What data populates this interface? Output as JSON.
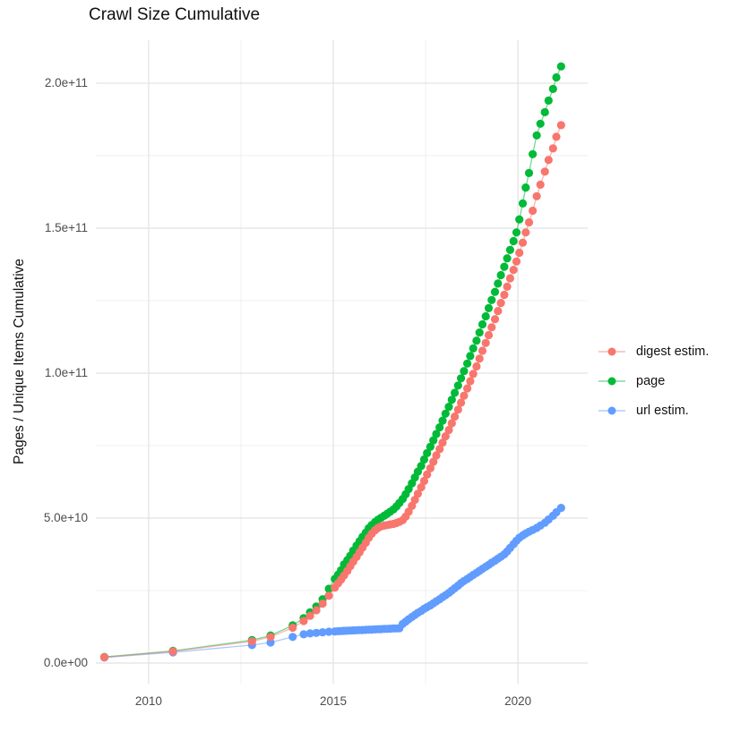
{
  "title": "Crawl Size Cumulative",
  "ylabel": "Pages / Unique Items Cumulative",
  "legend": {
    "items": [
      {
        "label": "digest estim.",
        "color": "#F8766D"
      },
      {
        "label": "page",
        "color": "#00BA38"
      },
      {
        "label": "url estim.",
        "color": "#619CFF"
      }
    ]
  },
  "colors": {
    "digest": "#F8766D",
    "page": "#00BA38",
    "url": "#619CFF",
    "grid_major": "#e2e2e2",
    "grid_minor": "#ececec",
    "axis_text": "#4d4d4d"
  },
  "chart_data": {
    "type": "scatter",
    "title": "Crawl Size Cumulative",
    "xlabel": "",
    "ylabel": "Pages / Unique Items Cumulative",
    "grid": true,
    "legend_position": "right",
    "xlim": [
      2008.57,
      2021.89
    ],
    "ylim": [
      -7100000000.0,
      214800000000.0
    ],
    "x_ticks": [
      {
        "value": 2010,
        "label": "2010"
      },
      {
        "value": 2015,
        "label": "2015"
      },
      {
        "value": 2020,
        "label": "2020"
      }
    ],
    "x_minor_ticks": [
      2012.5,
      2017.5
    ],
    "y_ticks": [
      {
        "value": 0,
        "label": "0.0e+00"
      },
      {
        "value": 50000000000.0,
        "label": "5.0e+10"
      },
      {
        "value": 100000000000.0,
        "label": "1.0e+11"
      },
      {
        "value": 150000000000.0,
        "label": "1.5e+11"
      },
      {
        "value": 200000000000.0,
        "label": "2.0e+11"
      }
    ],
    "y_minor_ticks": [
      25000000000.0,
      75000000000.0,
      125000000000.0,
      175000000000.0
    ],
    "series": [
      {
        "name": "url estim.",
        "color": "#619CFF",
        "points": [
          [
            2008.8,
            1900000000.0
          ],
          [
            2010.66,
            3700000000.0
          ],
          [
            2012.8,
            6200000000.0
          ],
          [
            2013.3,
            7100000000.0
          ],
          [
            2013.9,
            9000000000.0
          ],
          [
            2014.2,
            9900000000.0
          ],
          [
            2014.37,
            10200000000.0
          ],
          [
            2014.54,
            10400000000.0
          ],
          [
            2014.71,
            10600000000.0
          ],
          [
            2014.88,
            10800000000.0
          ],
          [
            2015.04,
            10900000000.0
          ],
          [
            2015.13,
            11000000000.0
          ],
          [
            2015.21,
            11050000000.0
          ],
          [
            2015.29,
            11100000000.0
          ],
          [
            2015.38,
            11150000000.0
          ],
          [
            2015.46,
            11200000000.0
          ],
          [
            2015.54,
            11250000000.0
          ],
          [
            2015.63,
            11300000000.0
          ],
          [
            2015.71,
            11350000000.0
          ],
          [
            2015.79,
            11400000000.0
          ],
          [
            2015.88,
            11450000000.0
          ],
          [
            2015.96,
            11500000000.0
          ],
          [
            2016.04,
            11550000000.0
          ],
          [
            2016.13,
            11600000000.0
          ],
          [
            2016.21,
            11650000000.0
          ],
          [
            2016.29,
            11700000000.0
          ],
          [
            2016.38,
            11750000000.0
          ],
          [
            2016.46,
            11800000000.0
          ],
          [
            2016.54,
            11850000000.0
          ],
          [
            2016.63,
            11900000000.0
          ],
          [
            2016.71,
            11950000000.0
          ],
          [
            2016.79,
            12000000000.0
          ],
          [
            2016.88,
            13500000000.0
          ],
          [
            2016.96,
            14300000000.0
          ],
          [
            2017.04,
            15100000000.0
          ],
          [
            2017.13,
            15900000000.0
          ],
          [
            2017.21,
            16600000000.0
          ],
          [
            2017.29,
            17300000000.0
          ],
          [
            2017.38,
            18000000000.0
          ],
          [
            2017.46,
            18700000000.0
          ],
          [
            2017.54,
            19300000000.0
          ],
          [
            2017.63,
            19900000000.0
          ],
          [
            2017.71,
            20600000000.0
          ],
          [
            2017.79,
            21300000000.0
          ],
          [
            2017.88,
            22000000000.0
          ],
          [
            2017.96,
            22700000000.0
          ],
          [
            2018.04,
            23400000000.0
          ],
          [
            2018.13,
            24200000000.0
          ],
          [
            2018.21,
            25000000000.0
          ],
          [
            2018.29,
            25800000000.0
          ],
          [
            2018.38,
            26700000000.0
          ],
          [
            2018.46,
            27600000000.0
          ],
          [
            2018.54,
            28300000000.0
          ],
          [
            2018.63,
            29000000000.0
          ],
          [
            2018.71,
            29700000000.0
          ],
          [
            2018.79,
            30400000000.0
          ],
          [
            2018.88,
            31100000000.0
          ],
          [
            2018.96,
            31800000000.0
          ],
          [
            2019.04,
            32500000000.0
          ],
          [
            2019.13,
            33200000000.0
          ],
          [
            2019.21,
            33900000000.0
          ],
          [
            2019.29,
            34600000000.0
          ],
          [
            2019.38,
            35300000000.0
          ],
          [
            2019.46,
            36000000000.0
          ],
          [
            2019.54,
            36700000000.0
          ],
          [
            2019.63,
            37500000000.0
          ],
          [
            2019.71,
            38500000000.0
          ],
          [
            2019.79,
            39700000000.0
          ],
          [
            2019.88,
            41000000000.0
          ],
          [
            2019.96,
            42200000000.0
          ],
          [
            2020.04,
            43200000000.0
          ],
          [
            2020.13,
            44000000000.0
          ],
          [
            2020.21,
            44700000000.0
          ],
          [
            2020.3,
            45300000000.0
          ],
          [
            2020.4,
            45900000000.0
          ],
          [
            2020.51,
            46600000000.0
          ],
          [
            2020.61,
            47400000000.0
          ],
          [
            2020.73,
            48400000000.0
          ],
          [
            2020.83,
            49500000000.0
          ],
          [
            2020.95,
            50800000000.0
          ],
          [
            2021.04,
            52000000000.0
          ],
          [
            2021.17,
            53500000000.0
          ]
        ]
      },
      {
        "name": "page",
        "color": "#00BA38",
        "points": [
          [
            2008.8,
            2100000000.0
          ],
          [
            2010.66,
            4200000000.0
          ],
          [
            2012.8,
            7900000000.0
          ],
          [
            2013.3,
            9500000000.0
          ],
          [
            2013.9,
            13000000000.0
          ],
          [
            2014.2,
            15500000000.0
          ],
          [
            2014.37,
            17500000000.0
          ],
          [
            2014.54,
            19500000000.0
          ],
          [
            2014.71,
            22000000000.0
          ],
          [
            2014.88,
            25600000000.0
          ],
          [
            2015.04,
            29000000000.0
          ],
          [
            2015.13,
            30500000000.0
          ],
          [
            2015.21,
            32000000000.0
          ],
          [
            2015.29,
            34000000000.0
          ],
          [
            2015.38,
            35500000000.0
          ],
          [
            2015.46,
            37000000000.0
          ],
          [
            2015.54,
            38800000000.0
          ],
          [
            2015.63,
            40500000000.0
          ],
          [
            2015.71,
            42000000000.0
          ],
          [
            2015.79,
            43500000000.0
          ],
          [
            2015.88,
            45000000000.0
          ],
          [
            2015.96,
            46500000000.0
          ],
          [
            2016.04,
            47600000000.0
          ],
          [
            2016.13,
            48600000000.0
          ],
          [
            2016.21,
            49400000000.0
          ],
          [
            2016.29,
            50100000000.0
          ],
          [
            2016.38,
            50800000000.0
          ],
          [
            2016.46,
            51500000000.0
          ],
          [
            2016.54,
            52200000000.0
          ],
          [
            2016.63,
            53000000000.0
          ],
          [
            2016.71,
            54000000000.0
          ],
          [
            2016.79,
            55200000000.0
          ],
          [
            2016.88,
            56600000000.0
          ],
          [
            2016.96,
            58200000000.0
          ],
          [
            2017.04,
            60000000000.0
          ],
          [
            2017.13,
            62000000000.0
          ],
          [
            2017.21,
            64000000000.0
          ],
          [
            2017.29,
            66000000000.0
          ],
          [
            2017.38,
            68000000000.0
          ],
          [
            2017.46,
            70200000000.0
          ],
          [
            2017.54,
            72400000000.0
          ],
          [
            2017.63,
            74600000000.0
          ],
          [
            2017.71,
            76800000000.0
          ],
          [
            2017.79,
            79000000000.0
          ],
          [
            2017.88,
            81300000000.0
          ],
          [
            2017.96,
            83600000000.0
          ],
          [
            2018.04,
            86000000000.0
          ],
          [
            2018.13,
            88400000000.0
          ],
          [
            2018.21,
            90800000000.0
          ],
          [
            2018.29,
            93200000000.0
          ],
          [
            2018.38,
            95700000000.0
          ],
          [
            2018.46,
            98200000000.0
          ],
          [
            2018.54,
            100700000000.0
          ],
          [
            2018.63,
            103300000000.0
          ],
          [
            2018.71,
            105900000000.0
          ],
          [
            2018.79,
            108500000000.0
          ],
          [
            2018.88,
            111200000000.0
          ],
          [
            2018.96,
            114000000000.0
          ],
          [
            2019.04,
            116800000000.0
          ],
          [
            2019.13,
            119600000000.0
          ],
          [
            2019.21,
            122400000000.0
          ],
          [
            2019.29,
            125200000000.0
          ],
          [
            2019.38,
            128000000000.0
          ],
          [
            2019.46,
            130900000000.0
          ],
          [
            2019.54,
            133800000000.0
          ],
          [
            2019.63,
            136700000000.0
          ],
          [
            2019.71,
            139600000000.0
          ],
          [
            2019.79,
            142500000000.0
          ],
          [
            2019.88,
            145500000000.0
          ],
          [
            2019.96,
            148500000000.0
          ],
          [
            2020.04,
            153000000000.0
          ],
          [
            2020.13,
            158500000000.0
          ],
          [
            2020.21,
            164000000000.0
          ],
          [
            2020.3,
            169000000000.0
          ],
          [
            2020.4,
            175500000000.0
          ],
          [
            2020.51,
            182000000000.0
          ],
          [
            2020.61,
            186000000000.0
          ],
          [
            2020.73,
            190000000000.0
          ],
          [
            2020.83,
            194000000000.0
          ],
          [
            2020.95,
            198000000000.0
          ],
          [
            2021.04,
            202000000000.0
          ],
          [
            2021.17,
            205800000000.0
          ]
        ]
      },
      {
        "name": "digest estim.",
        "color": "#F8766D",
        "points": [
          [
            2008.8,
            2000000000.0
          ],
          [
            2010.66,
            4000000000.0
          ],
          [
            2012.8,
            7500000000.0
          ],
          [
            2013.3,
            9000000000.0
          ],
          [
            2013.9,
            12200000000.0
          ],
          [
            2014.2,
            14500000000.0
          ],
          [
            2014.37,
            16300000000.0
          ],
          [
            2014.54,
            18200000000.0
          ],
          [
            2014.71,
            20500000000.0
          ],
          [
            2014.88,
            23200000000.0
          ],
          [
            2015.04,
            26000000000.0
          ],
          [
            2015.13,
            27500000000.0
          ],
          [
            2015.21,
            28800000000.0
          ],
          [
            2015.29,
            30200000000.0
          ],
          [
            2015.38,
            31800000000.0
          ],
          [
            2015.46,
            33400000000.0
          ],
          [
            2015.54,
            35000000000.0
          ],
          [
            2015.63,
            36600000000.0
          ],
          [
            2015.71,
            38200000000.0
          ],
          [
            2015.79,
            39800000000.0
          ],
          [
            2015.88,
            41500000000.0
          ],
          [
            2015.96,
            43200000000.0
          ],
          [
            2016.04,
            44600000000.0
          ],
          [
            2016.13,
            45800000000.0
          ],
          [
            2016.21,
            46600000000.0
          ],
          [
            2016.29,
            47100000000.0
          ],
          [
            2016.38,
            47400000000.0
          ],
          [
            2016.46,
            47600000000.0
          ],
          [
            2016.54,
            47800000000.0
          ],
          [
            2016.63,
            48000000000.0
          ],
          [
            2016.71,
            48300000000.0
          ],
          [
            2016.79,
            48700000000.0
          ],
          [
            2016.88,
            49300000000.0
          ],
          [
            2016.96,
            50500000000.0
          ],
          [
            2017.04,
            52200000000.0
          ],
          [
            2017.13,
            54200000000.0
          ],
          [
            2017.21,
            56300000000.0
          ],
          [
            2017.29,
            58400000000.0
          ],
          [
            2017.38,
            60600000000.0
          ],
          [
            2017.46,
            62800000000.0
          ],
          [
            2017.54,
            65000000000.0
          ],
          [
            2017.63,
            67200000000.0
          ],
          [
            2017.71,
            69400000000.0
          ],
          [
            2017.79,
            71600000000.0
          ],
          [
            2017.88,
            73800000000.0
          ],
          [
            2017.96,
            76000000000.0
          ],
          [
            2018.04,
            78200000000.0
          ],
          [
            2018.13,
            80400000000.0
          ],
          [
            2018.21,
            82700000000.0
          ],
          [
            2018.29,
            85000000000.0
          ],
          [
            2018.38,
            87400000000.0
          ],
          [
            2018.46,
            89800000000.0
          ],
          [
            2018.54,
            92200000000.0
          ],
          [
            2018.63,
            94700000000.0
          ],
          [
            2018.71,
            97200000000.0
          ],
          [
            2018.79,
            99700000000.0
          ],
          [
            2018.88,
            102300000000.0
          ],
          [
            2018.96,
            105000000000.0
          ],
          [
            2019.04,
            107700000000.0
          ],
          [
            2019.13,
            110400000000.0
          ],
          [
            2019.21,
            113100000000.0
          ],
          [
            2019.29,
            115800000000.0
          ],
          [
            2019.38,
            118600000000.0
          ],
          [
            2019.46,
            121400000000.0
          ],
          [
            2019.54,
            124200000000.0
          ],
          [
            2019.63,
            127000000000.0
          ],
          [
            2019.71,
            129800000000.0
          ],
          [
            2019.79,
            132700000000.0
          ],
          [
            2019.88,
            135600000000.0
          ],
          [
            2019.96,
            138500000000.0
          ],
          [
            2020.04,
            141500000000.0
          ],
          [
            2020.13,
            145000000000.0
          ],
          [
            2020.21,
            148500000000.0
          ],
          [
            2020.3,
            152000000000.0
          ],
          [
            2020.4,
            156000000000.0
          ],
          [
            2020.51,
            161000000000.0
          ],
          [
            2020.61,
            165000000000.0
          ],
          [
            2020.73,
            169500000000.0
          ],
          [
            2020.83,
            173500000000.0
          ],
          [
            2020.95,
            177500000000.0
          ],
          [
            2021.04,
            181500000000.0
          ],
          [
            2021.17,
            185500000000.0
          ]
        ]
      }
    ]
  }
}
